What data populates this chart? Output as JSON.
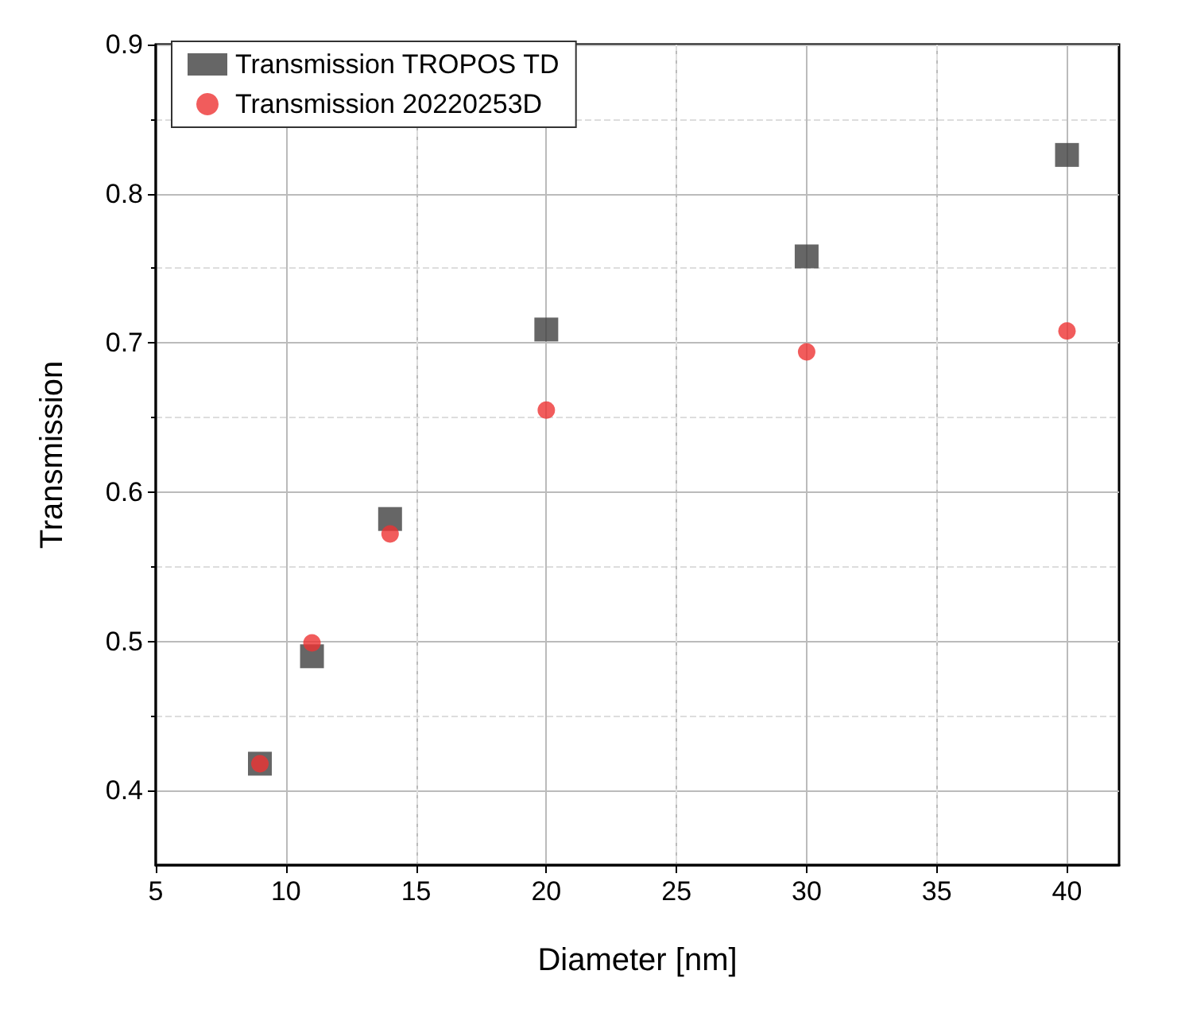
{
  "chart_data": {
    "type": "scatter",
    "xlabel": "Diameter [nm]",
    "ylabel": "Transmission",
    "xlim": [
      5,
      42
    ],
    "xticks": [
      5,
      10,
      15,
      20,
      25,
      30,
      35,
      40
    ],
    "ylim": [
      0.35,
      0.9
    ],
    "yticks": [
      0.4,
      0.5,
      0.6,
      0.7,
      0.8,
      0.9
    ],
    "grid": true,
    "legend": "top left",
    "x": [
      9,
      11,
      14,
      20,
      30,
      40
    ],
    "series": [
      {
        "name": "Transmission TROPOS TD",
        "color": "#404040",
        "marker": "square",
        "values": [
          0.418,
          0.49,
          0.582,
          0.709,
          0.758,
          0.826
        ]
      },
      {
        "name": "Transmission 20220253D",
        "color": "#ee3333",
        "marker": "circle",
        "values": [
          0.418,
          0.499,
          0.572,
          0.655,
          0.694,
          0.708
        ]
      }
    ]
  }
}
